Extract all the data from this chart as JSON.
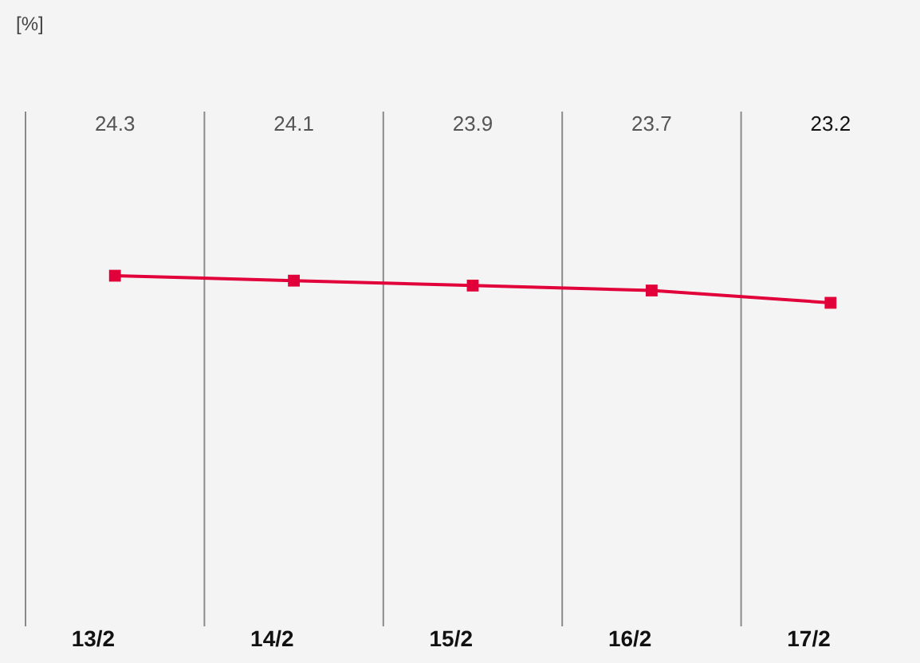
{
  "chart_data": {
    "type": "line",
    "annotations": [
      "[%]"
    ],
    "categories": [
      "13/2",
      "14/2",
      "15/2",
      "16/2",
      "17/2"
    ],
    "series": [
      {
        "color": "#e2003a",
        "values": [
          24.3,
          24.1,
          23.9,
          23.7,
          23.2
        ]
      }
    ],
    "tick_labels": "x",
    "grid": "x",
    "data_labels": true,
    "marker": "square",
    "line_style": "solid"
  }
}
